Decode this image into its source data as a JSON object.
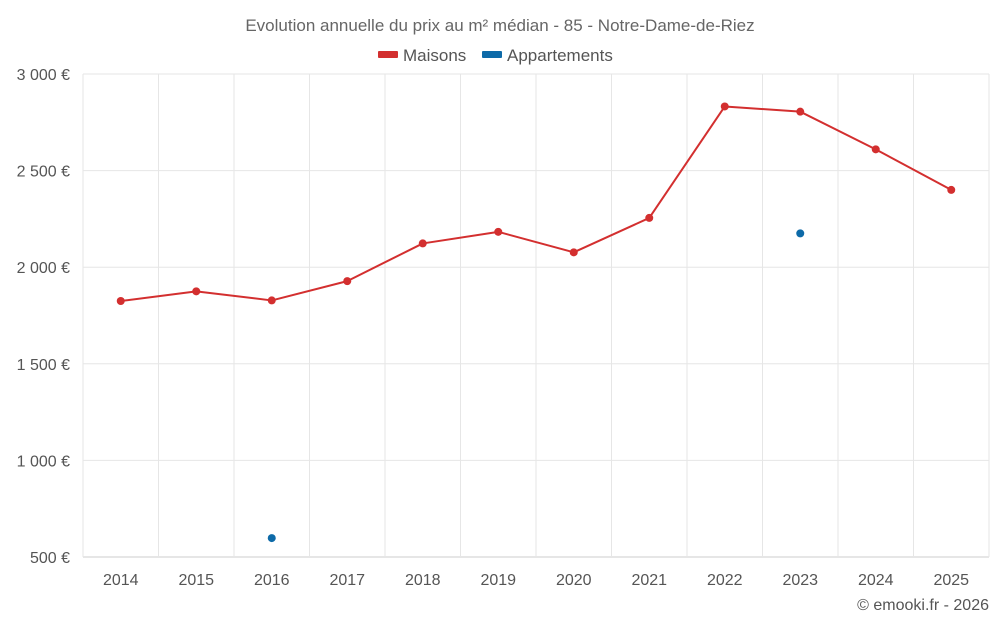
{
  "chart_data": {
    "type": "line",
    "title": "Evolution annuelle du prix au m² médian - 85 - Notre-Dame-de-Riez",
    "categories": [
      "2014",
      "2015",
      "2016",
      "2017",
      "2018",
      "2019",
      "2020",
      "2021",
      "2022",
      "2023",
      "2024",
      "2025"
    ],
    "ylim": [
      500,
      3000
    ],
    "yticks": [
      500,
      1000,
      1500,
      2000,
      2500,
      3000
    ],
    "ytick_labels": [
      "500 €",
      "1 000 €",
      "1 500 €",
      "2 000 €",
      "2 500 €",
      "3 000 €"
    ],
    "grid": true,
    "legend_position": "top-center",
    "series": [
      {
        "name": "Maisons",
        "color": "#d32f2f",
        "values": [
          1825,
          1875,
          1828,
          1928,
          2123,
          2183,
          2077,
          2255,
          2832,
          2805,
          2610,
          2400
        ]
      },
      {
        "name": "Appartements",
        "color": "#0d6aa8",
        "values": [
          null,
          null,
          598,
          null,
          null,
          null,
          null,
          null,
          null,
          2175,
          null,
          null
        ]
      }
    ]
  },
  "credit": "© emooki.fr - 2026"
}
